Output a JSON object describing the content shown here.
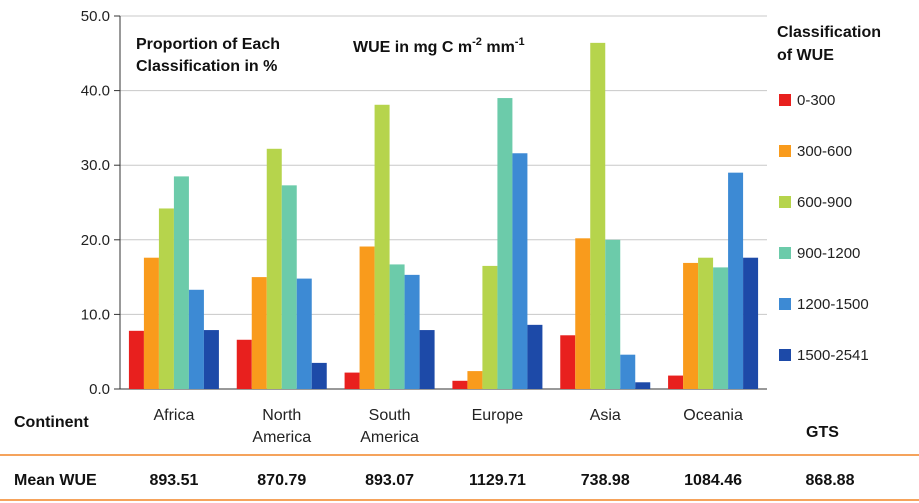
{
  "chart_data": {
    "type": "bar",
    "annotation_1": [
      "Proportion of Each",
      "Classification in %"
    ],
    "annotation_2": {
      "prefix": "WUE in mg C m",
      "sup1": "-2",
      "mid": " mm",
      "sup2": "-1"
    },
    "ylim": [
      0,
      50
    ],
    "yticks": [
      "0.0",
      "10.0",
      "20.0",
      "30.0",
      "40.0",
      "50.0"
    ],
    "ytick_values": [
      0,
      10,
      20,
      30,
      40,
      50
    ],
    "grid": "horizontal",
    "legend_title": [
      "Classification",
      "of WUE"
    ],
    "legend_position": "right",
    "categories": [
      [
        "Africa"
      ],
      [
        "North",
        "America"
      ],
      [
        "South",
        "America"
      ],
      [
        "Europe"
      ],
      [
        "Asia"
      ],
      [
        "Oceania"
      ]
    ],
    "series": [
      {
        "name": "0-300",
        "color": "#e8201e",
        "values": [
          7.8,
          6.6,
          2.2,
          1.1,
          7.2,
          1.8
        ]
      },
      {
        "name": "300-600",
        "color": "#f99b1c",
        "values": [
          17.6,
          15.0,
          19.1,
          2.4,
          20.2,
          16.9
        ]
      },
      {
        "name": "600-900",
        "color": "#b6d44c",
        "values": [
          24.2,
          32.2,
          38.1,
          16.5,
          46.4,
          17.6
        ]
      },
      {
        "name": "900-1200",
        "color": "#6ccbaa",
        "values": [
          28.5,
          27.3,
          16.7,
          39.0,
          20.0,
          16.3
        ]
      },
      {
        "name": "1200-1500",
        "color": "#3d8ad4",
        "values": [
          13.3,
          14.8,
          15.3,
          31.6,
          4.6,
          29.0
        ]
      },
      {
        "name": "1500-2541",
        "color": "#1d4aa8",
        "values": [
          7.9,
          3.5,
          7.9,
          8.6,
          0.9,
          17.6
        ]
      }
    ]
  },
  "table": {
    "continent_label": "Continent",
    "gts_label": "GTS",
    "mean_label": "Mean WUE",
    "mean_values": [
      "893.51",
      "870.79",
      "893.07",
      "1129.71",
      "738.98",
      "1084.46",
      "868.88"
    ],
    "rule_color": "#f5a35c"
  }
}
